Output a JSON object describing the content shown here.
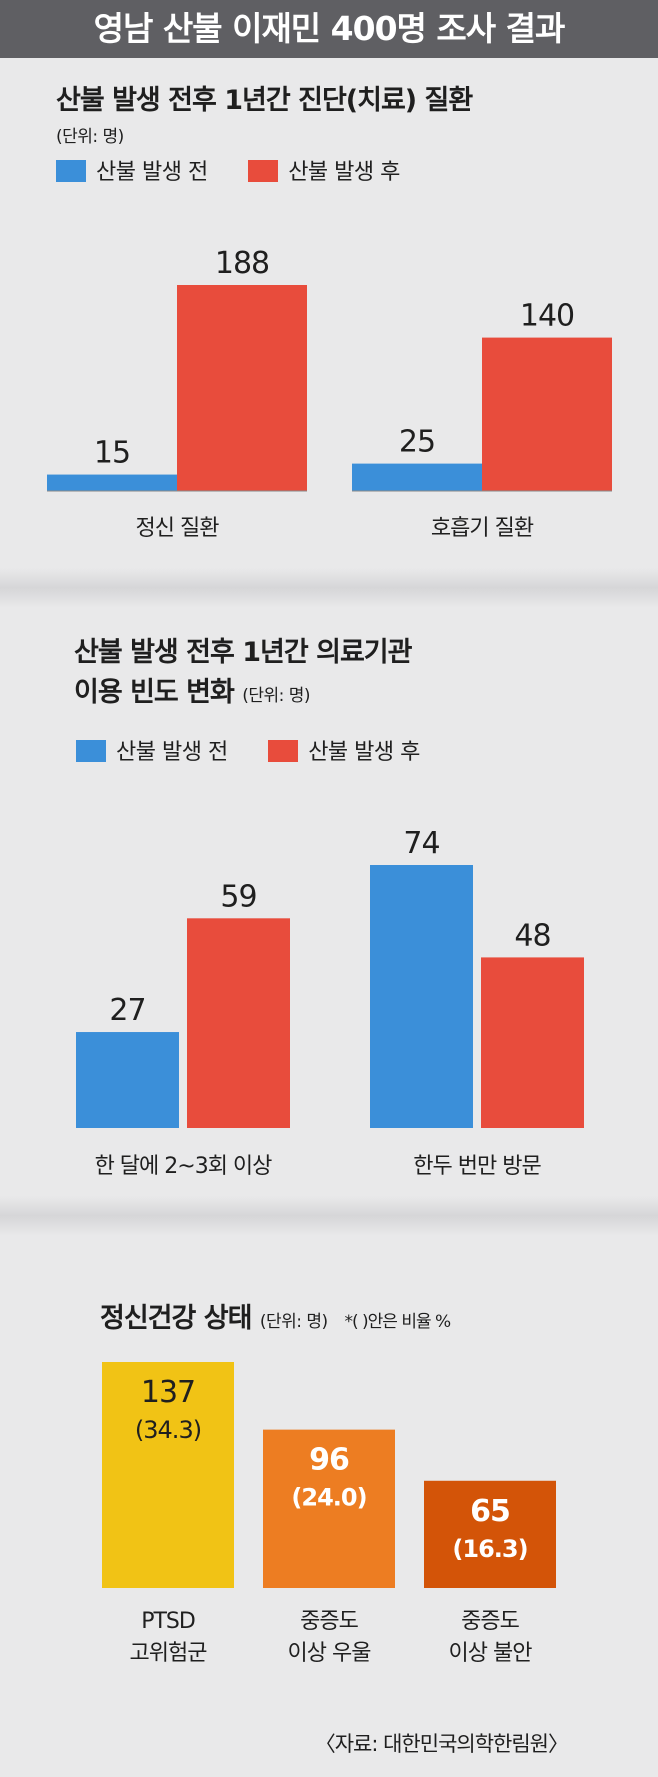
{
  "header": {
    "title": "영남 산불 이재민 400명 조사 결과"
  },
  "colors": {
    "before": "#3b8fd9",
    "after": "#e84c3c",
    "ptsd": "#f1c315",
    "depression": "#ed7d22",
    "anxiety": "#d35408"
  },
  "legend": {
    "before": "산불 발생 전",
    "after": "산불 발생 후"
  },
  "chart_data": [
    {
      "type": "bar",
      "title": "산불 발생 전후 1년간 진단(치료) 질환",
      "unit": "(단위: 명)",
      "categories": [
        "정신 질환",
        "호흡기 질환"
      ],
      "series": [
        {
          "name": "산불 발생 전",
          "values": [
            15,
            25
          ]
        },
        {
          "name": "산불 발생 후",
          "values": [
            188,
            140
          ]
        }
      ]
    },
    {
      "type": "bar",
      "title_line1": "산불 발생 전후 1년간 의료기관",
      "title_line2": "이용 빈도 변화",
      "unit": "(단위: 명)",
      "categories": [
        "한 달에 2~3회 이상",
        "한두 번만 방문"
      ],
      "series": [
        {
          "name": "산불 발생 전",
          "values": [
            27,
            74
          ]
        },
        {
          "name": "산불 발생 후",
          "values": [
            59,
            48
          ]
        }
      ]
    },
    {
      "type": "bar",
      "title": "정신건강 상태",
      "unit": "(단위: 명)",
      "note": "*( )안은 비율 %",
      "categories": [
        [
          "PTSD",
          "고위험군"
        ],
        [
          "중증도",
          "이상 우울"
        ],
        [
          "중증도",
          "이상 불안"
        ]
      ],
      "values": [
        137,
        96,
        65
      ],
      "percent_labels": [
        "(34.3)",
        "(24.0)",
        "(16.3)"
      ]
    }
  ],
  "source": "〈자료: 대한민국의학한림원〉"
}
